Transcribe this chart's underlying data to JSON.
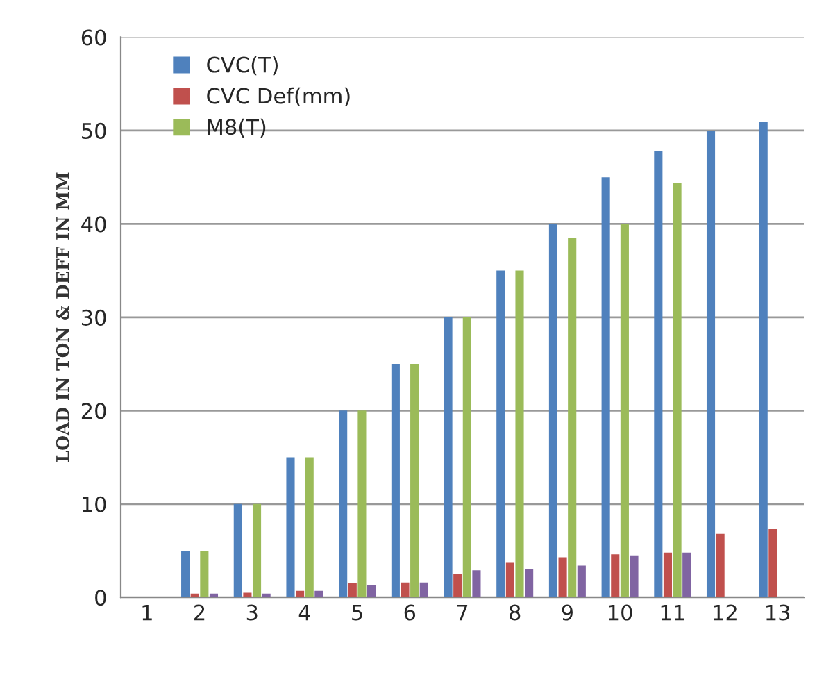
{
  "chart_data": {
    "type": "bar",
    "ylabel": "LOAD IN TON & DEFF IN MM",
    "categories": [
      "1",
      "2",
      "3",
      "4",
      "5",
      "6",
      "7",
      "8",
      "9",
      "10",
      "11",
      "12",
      "13"
    ],
    "series": [
      {
        "name": "CVC(T)",
        "color": "#4f81bd",
        "values": [
          null,
          5,
          10,
          15,
          20,
          25,
          30,
          35,
          40,
          45,
          47.8,
          50,
          50.9
        ]
      },
      {
        "name": "CVC Def(mm)",
        "color": "#c0504d",
        "values": [
          null,
          0.4,
          0.5,
          0.7,
          1.5,
          1.6,
          2.5,
          3.7,
          4.3,
          4.6,
          4.8,
          6.8,
          7.3
        ]
      },
      {
        "name": "M8(T)",
        "color": "#9bbb59",
        "values": [
          null,
          5,
          10,
          15,
          20,
          25,
          30,
          35,
          38.5,
          40,
          44.4,
          null,
          null
        ]
      },
      {
        "color": "#8064a2",
        "values": [
          null,
          0.4,
          0.4,
          0.7,
          1.3,
          1.6,
          2.9,
          3.0,
          3.4,
          4.5,
          4.8,
          null,
          null
        ]
      }
    ],
    "ylim": [
      0,
      60
    ],
    "yticks": [
      0,
      10,
      20,
      30,
      40,
      50,
      60
    ],
    "grid": "y",
    "legend": "top left"
  }
}
